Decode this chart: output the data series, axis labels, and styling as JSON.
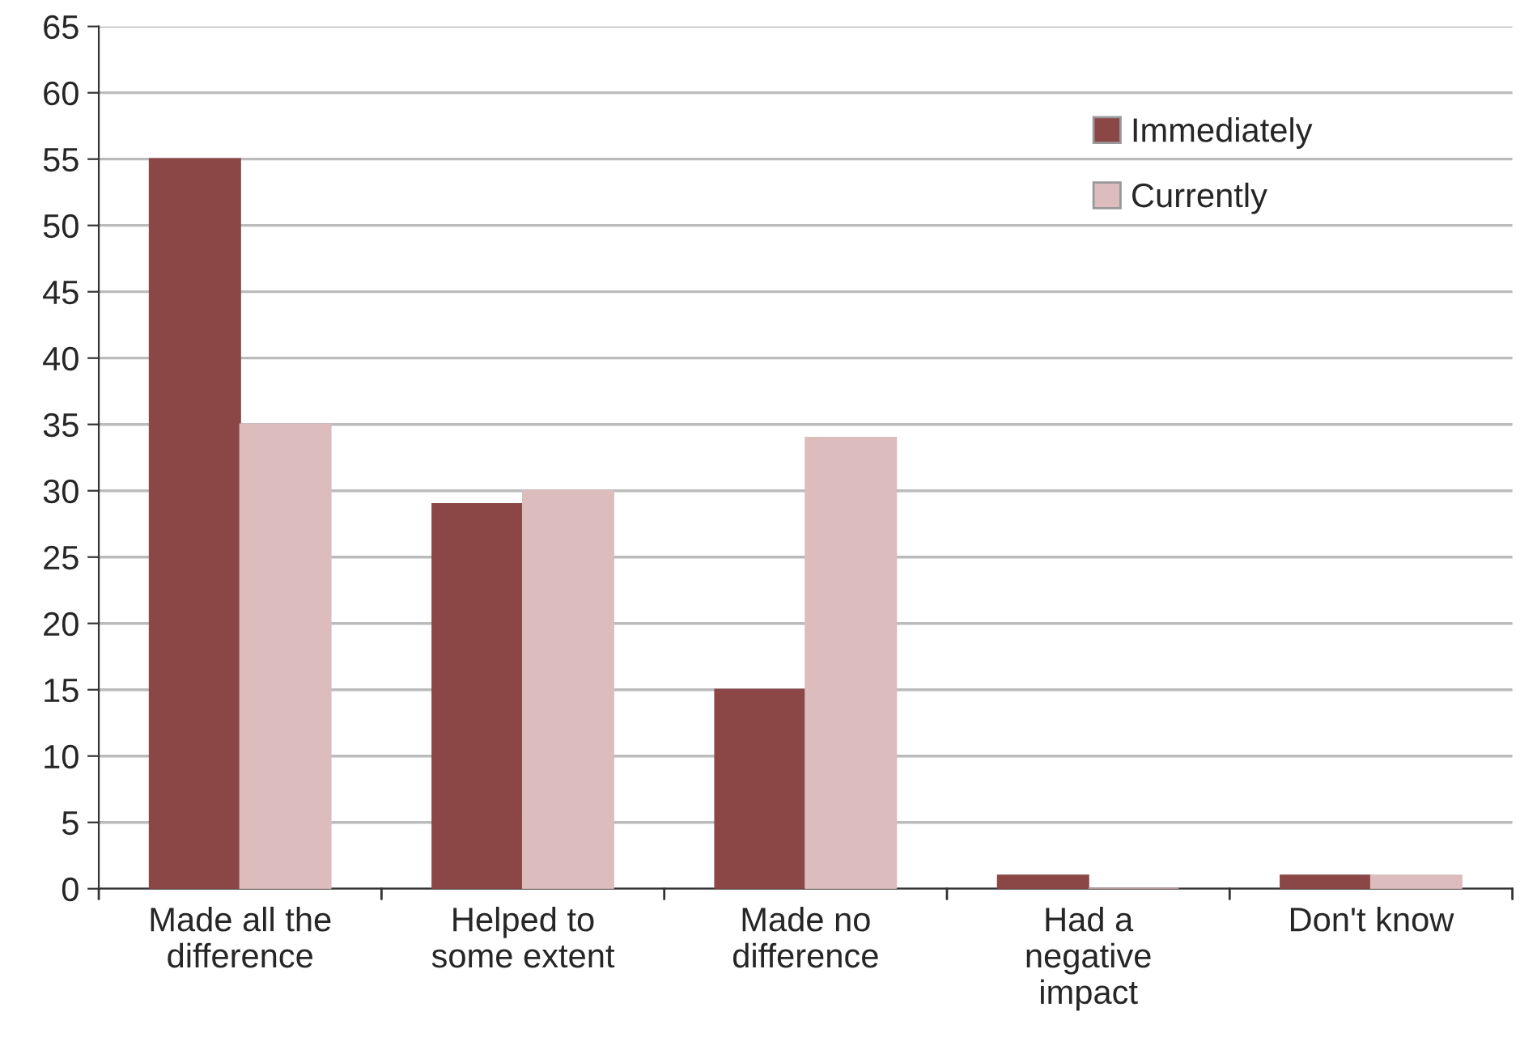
{
  "chart_data": {
    "type": "bar",
    "categories": [
      "Made all the\ndifference",
      "Helped to\nsome extent",
      "Made no\ndifference",
      "Had a\nnegative\nimpact",
      "Don't know"
    ],
    "series": [
      {
        "name": "Immediately",
        "color": "#8b4646",
        "values": [
          55,
          29,
          15,
          1,
          1
        ]
      },
      {
        "name": "Currently",
        "color": "#dcbcbd",
        "values": [
          35,
          30,
          34,
          0,
          1
        ]
      }
    ],
    "ylim": [
      0,
      65
    ],
    "yticks": [
      0,
      5,
      10,
      15,
      20,
      25,
      30,
      35,
      40,
      45,
      50,
      55,
      60,
      65
    ],
    "grid": "y",
    "legend": "top right"
  }
}
